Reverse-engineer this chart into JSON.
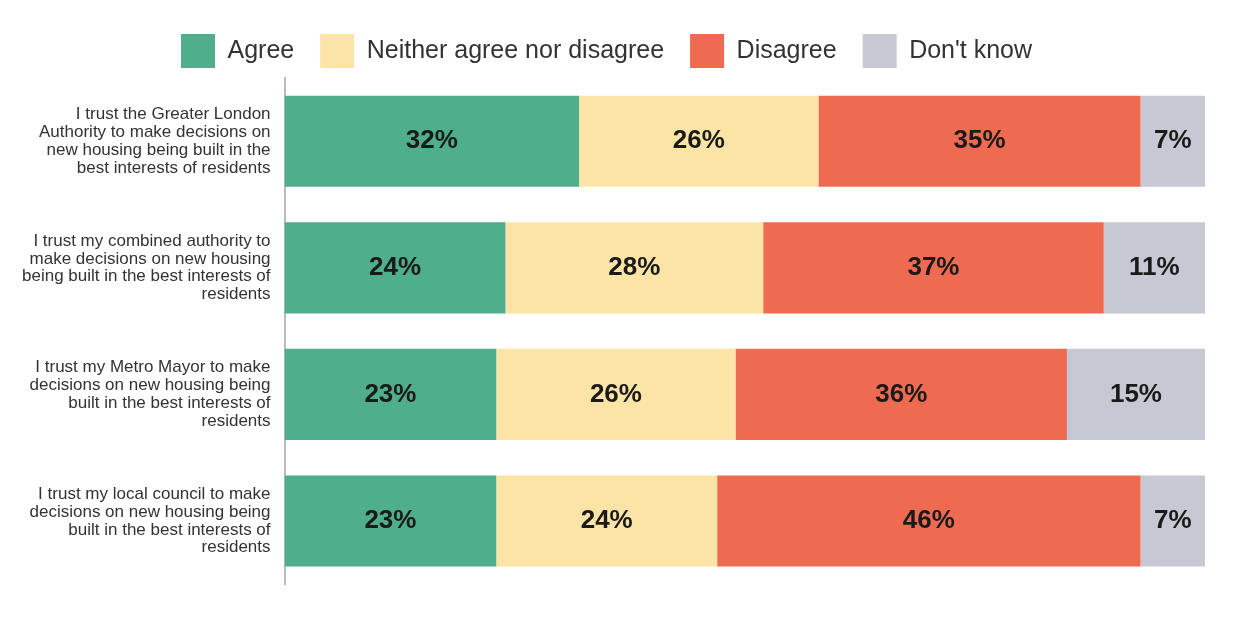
{
  "chart_data": {
    "type": "bar",
    "orientation": "horizontal",
    "stacked": true,
    "categories": [
      "I trust the Greater London Authority to make decisions on new housing being built in the best interests of residents",
      "I trust my combined authority to make decisions on new housing being built in the best interests of residents",
      "I trust my Metro Mayor to make decisions on new housing being built in the best interests of residents",
      "I trust my local council to make decisions on new housing being built in the best interests of residents"
    ],
    "series": [
      {
        "name": "Agree",
        "color": "#4fae8b",
        "values": [
          32,
          24,
          23,
          23
        ],
        "value_labels": [
          "32%",
          "24%",
          "23%",
          "23%"
        ]
      },
      {
        "name": "Neither agree nor disagree",
        "color": "#fbe4a6",
        "values": [
          26,
          28,
          26,
          24
        ],
        "value_labels": [
          "26%",
          "28%",
          "26%",
          "24%"
        ]
      },
      {
        "name": "Disagree",
        "color": "#ee6b52",
        "values": [
          35,
          37,
          36,
          46
        ],
        "value_labels": [
          "35%",
          "37%",
          "36%",
          "46%"
        ]
      },
      {
        "name": "Don't know",
        "color": "#c6c9d3",
        "values": [
          7,
          11,
          15,
          7
        ],
        "value_labels": [
          "7%",
          "11%",
          "15%",
          "7%"
        ]
      }
    ],
    "legend": "top",
    "grid": false,
    "tick_labels": "y"
  }
}
